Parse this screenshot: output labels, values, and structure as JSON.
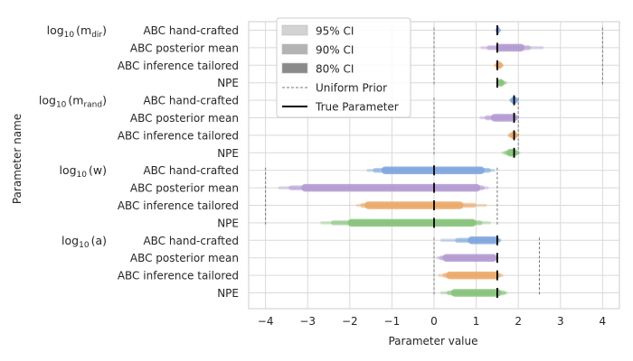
{
  "chart_data": {
    "type": "interval",
    "xlabel": "Parameter value",
    "ylabel": "Parameter name",
    "xlim": [
      -4.4,
      4.4
    ],
    "xticks": [
      -4,
      -3,
      -2,
      -1,
      0,
      1,
      2,
      3,
      4
    ],
    "xtick_labels": [
      "−4",
      "−3",
      "−2",
      "−1",
      "0",
      "1",
      "2",
      "3",
      "4"
    ],
    "grid": true,
    "legend_position": "top-left",
    "legend": [
      {
        "label": "95% CI",
        "kind": "patch",
        "color": "#d3d3d3"
      },
      {
        "label": "90% CI",
        "kind": "patch",
        "color": "#b3b3b3"
      },
      {
        "label": "80% CI",
        "kind": "patch",
        "color": "#8a8a8a"
      },
      {
        "label": "Uniform Prior",
        "kind": "dashed",
        "color": "#777777"
      },
      {
        "label": "True Parameter",
        "kind": "line",
        "color": "#000000"
      }
    ],
    "method_colors": {
      "ABC hand-crafted": "#7ea6dd",
      "ABC posterior mean": "#b39ad0",
      "ABC inference tailored": "#eaa96a",
      "NPE": "#86c27a"
    },
    "groups": [
      {
        "label_main": "log",
        "label_sub": "10",
        "label_param": "(m",
        "label_param_sub": "dir",
        "label_close": ")",
        "prior": [
          0,
          4
        ],
        "true_value": 1.5,
        "methods": [
          {
            "name": "ABC hand-crafted",
            "ci95": [
              1.44,
              1.6
            ],
            "ci90": [
              1.46,
              1.58
            ],
            "ci80": [
              1.48,
              1.56
            ]
          },
          {
            "name": "ABC posterior mean",
            "ci95": [
              1.1,
              2.6
            ],
            "ci90": [
              1.25,
              2.3
            ],
            "ci80": [
              1.45,
              2.15
            ]
          },
          {
            "name": "ABC inference tailored",
            "ci95": [
              1.42,
              1.66
            ],
            "ci90": [
              1.44,
              1.64
            ],
            "ci80": [
              1.47,
              1.62
            ]
          },
          {
            "name": "NPE",
            "ci95": [
              1.46,
              1.74
            ],
            "ci90": [
              1.48,
              1.7
            ],
            "ci80": [
              1.5,
              1.66
            ]
          }
        ]
      },
      {
        "label_main": "log",
        "label_sub": "10",
        "label_param": "(m",
        "label_param_sub": "rand",
        "label_close": ")",
        "prior": [
          0,
          2
        ],
        "true_value": 1.9,
        "methods": [
          {
            "name": "ABC hand-crafted",
            "ci95": [
              1.78,
              2.02
            ],
            "ci90": [
              1.8,
              2.0
            ],
            "ci80": [
              1.82,
              1.98
            ]
          },
          {
            "name": "ABC posterior mean",
            "ci95": [
              1.08,
              2.02
            ],
            "ci90": [
              1.2,
              2.0
            ],
            "ci80": [
              1.35,
              1.98
            ]
          },
          {
            "name": "ABC inference tailored",
            "ci95": [
              1.74,
              2.02
            ],
            "ci90": [
              1.76,
              2.0
            ],
            "ci80": [
              1.8,
              1.98
            ]
          },
          {
            "name": "NPE",
            "ci95": [
              1.6,
              2.05
            ],
            "ci90": [
              1.66,
              2.02
            ],
            "ci80": [
              1.72,
              1.98
            ]
          }
        ]
      },
      {
        "label_main": "log",
        "label_sub": "10",
        "label_param": "(w",
        "label_param_sub": "",
        "label_close": ")",
        "prior": [
          -4,
          1.5
        ],
        "true_value": 0,
        "methods": [
          {
            "name": "ABC hand-crafted",
            "ci95": [
              -1.6,
              1.45
            ],
            "ci90": [
              -1.45,
              1.35
            ],
            "ci80": [
              -1.25,
              1.2
            ]
          },
          {
            "name": "ABC posterior mean",
            "ci95": [
              -3.7,
              1.3
            ],
            "ci90": [
              -3.45,
              1.2
            ],
            "ci80": [
              -3.15,
              1.1
            ]
          },
          {
            "name": "ABC inference tailored",
            "ci95": [
              -1.85,
              1.25
            ],
            "ci90": [
              -1.75,
              1.0
            ],
            "ci80": [
              -1.65,
              0.7
            ]
          },
          {
            "name": "NPE",
            "ci95": [
              -2.7,
              1.35
            ],
            "ci90": [
              -2.45,
              1.15
            ],
            "ci80": [
              -2.05,
              1.0
            ]
          }
        ]
      },
      {
        "label_main": "log",
        "label_sub": "10",
        "label_param": "(a",
        "label_param_sub": "",
        "label_close": ")",
        "prior": [
          0,
          2.5
        ],
        "true_value": 1.5,
        "methods": [
          {
            "name": "ABC hand-crafted",
            "ci95": [
              0.15,
              1.6
            ],
            "ci90": [
              0.5,
              1.58
            ],
            "ci80": [
              0.8,
              1.55
            ]
          },
          {
            "name": "ABC posterior mean",
            "ci95": [
              0.05,
              1.53
            ],
            "ci90": [
              0.12,
              1.52
            ],
            "ci80": [
              0.2,
              1.5
            ]
          },
          {
            "name": "ABC inference tailored",
            "ci95": [
              0.1,
              1.65
            ],
            "ci90": [
              0.2,
              1.6
            ],
            "ci80": [
              0.28,
              1.55
            ]
          },
          {
            "name": "NPE",
            "ci95": [
              0.15,
              1.75
            ],
            "ci90": [
              0.3,
              1.7
            ],
            "ci80": [
              0.4,
              1.6
            ]
          }
        ]
      }
    ]
  }
}
